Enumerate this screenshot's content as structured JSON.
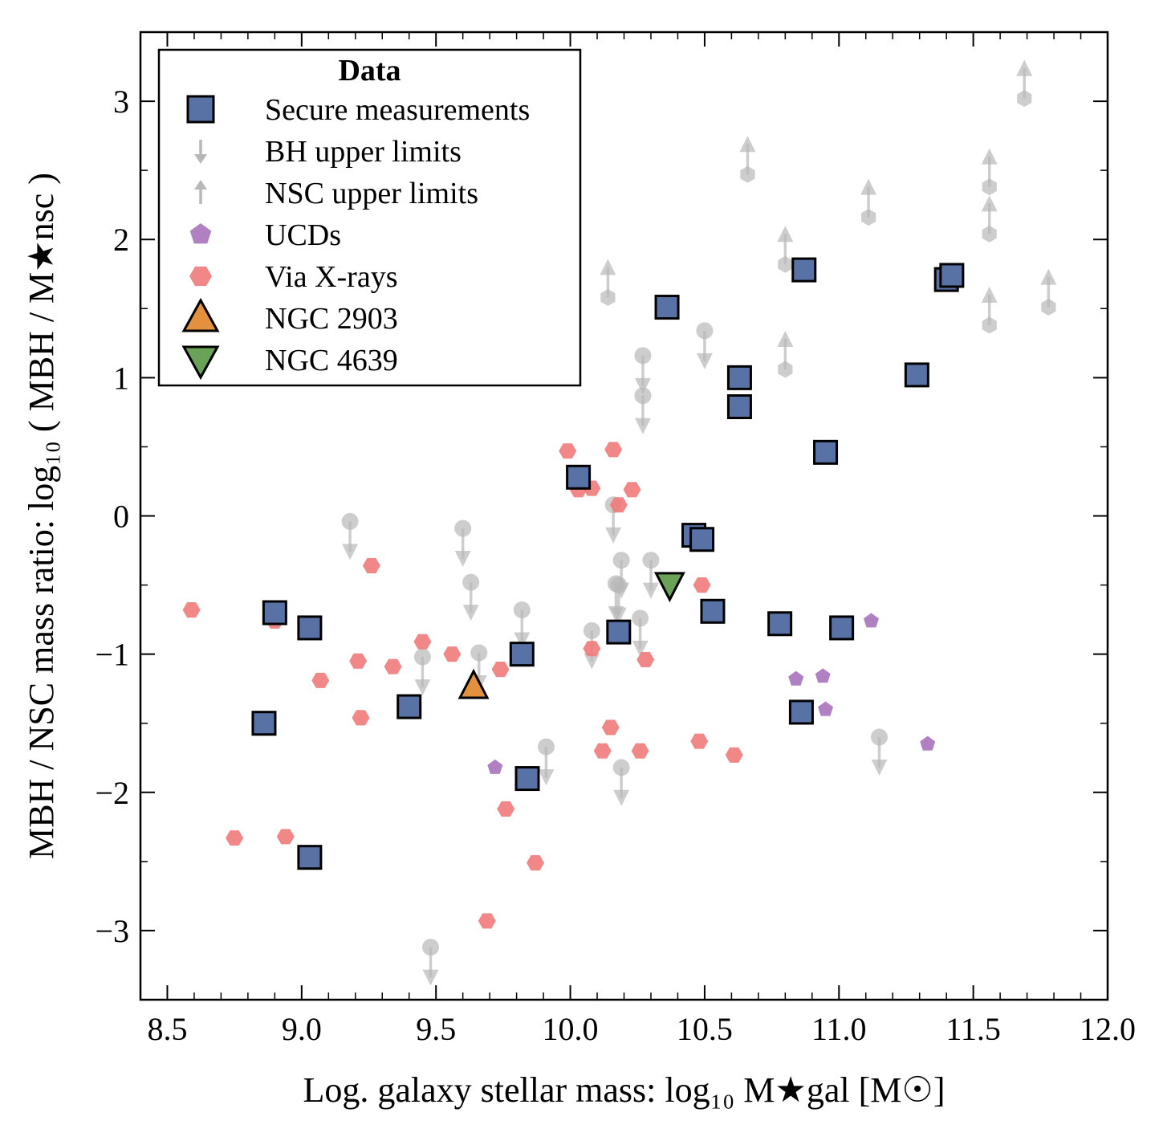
{
  "colors": {
    "secure": "#5872a6",
    "bh_limit": "#b8b8b8",
    "nsc_limit": "#b8b8b8",
    "ucd": "#a872bd",
    "xray": "#f07a7a",
    "ngc2903": "#e3913f",
    "ngc4639": "#6aa257"
  },
  "chart_data": {
    "type": "scatter",
    "xlabel": "Log. galaxy stellar mass: log₁₀ M★gal [M☉]",
    "ylabel": "MBH / NSC mass ratio: log₁₀ ( MBH / M★nsc )",
    "xlim": [
      8.4,
      12.0
    ],
    "ylim": [
      -3.5,
      3.5
    ],
    "xticks": [
      "8.5",
      "9.0",
      "9.5",
      "10.0",
      "10.5",
      "11.0",
      "11.5",
      "12.0"
    ],
    "xtick_values": [
      8.5,
      9.0,
      9.5,
      10.0,
      10.5,
      11.0,
      11.5,
      12.0
    ],
    "yticks": [
      "−3",
      "−2",
      "−1",
      "0",
      "1",
      "2",
      "3"
    ],
    "ytick_values": [
      -3,
      -2,
      -1,
      0,
      1,
      2,
      3
    ],
    "grid": false,
    "legend": {
      "title": "Data",
      "position": "top-left",
      "entries": [
        {
          "key": "secure",
          "label": "Secure measurements"
        },
        {
          "key": "bh_limit",
          "label": "BH upper limits"
        },
        {
          "key": "nsc_limit",
          "label": "NSC upper limits"
        },
        {
          "key": "ucd",
          "label": "UCDs"
        },
        {
          "key": "xray",
          "label": "Via X-rays"
        },
        {
          "key": "ngc2903",
          "label": "NGC 2903"
        },
        {
          "key": "ngc4639",
          "label": "NGC 4639"
        }
      ]
    },
    "series": [
      {
        "name": "Secure measurements",
        "key": "secure",
        "marker": "square",
        "x": [
          8.9,
          9.03,
          8.86,
          9.4,
          9.03,
          9.82,
          9.84,
          10.03,
          10.18,
          10.36,
          10.46,
          10.49,
          10.53,
          10.63,
          10.63,
          10.78,
          10.86,
          10.87,
          10.95,
          11.01,
          11.29,
          11.4,
          11.42
        ],
        "y": [
          -0.7,
          -0.81,
          -1.5,
          -1.38,
          -2.47,
          -1.0,
          -1.9,
          0.28,
          -0.84,
          1.51,
          -0.14,
          -0.17,
          -0.69,
          1.0,
          0.79,
          -0.78,
          -1.42,
          1.78,
          0.46,
          -0.81,
          1.02,
          1.71,
          1.74
        ]
      },
      {
        "name": "BH upper limits",
        "key": "bh_limit",
        "marker": "circle-down-arrow",
        "x": [
          9.18,
          9.45,
          9.48,
          9.6,
          9.63,
          9.66,
          9.82,
          9.91,
          10.08,
          10.16,
          10.17,
          10.18,
          10.19,
          10.19,
          10.27,
          10.27,
          10.26,
          10.3,
          10.5,
          11.15
        ],
        "y": [
          -0.04,
          -1.02,
          -3.12,
          -0.09,
          -0.48,
          -0.99,
          -0.68,
          -1.67,
          -0.83,
          0.08,
          -0.49,
          -0.5,
          -0.32,
          -1.82,
          1.16,
          0.87,
          -0.74,
          -0.32,
          1.34,
          -1.6
        ]
      },
      {
        "name": "NSC upper limits",
        "key": "nsc_limit",
        "marker": "hexagon-up-arrow",
        "x": [
          10.14,
          10.66,
          10.8,
          10.8,
          11.11,
          11.56,
          11.56,
          11.56,
          11.69,
          11.78
        ],
        "y": [
          1.58,
          2.47,
          1.82,
          1.06,
          2.16,
          2.38,
          2.04,
          1.38,
          3.02,
          1.51
        ]
      },
      {
        "name": "UCDs",
        "key": "ucd",
        "marker": "pentagon",
        "x": [
          9.72,
          10.84,
          10.94,
          10.95,
          11.12,
          11.33
        ],
        "y": [
          -1.82,
          -1.18,
          -1.16,
          -1.4,
          -0.76,
          -1.65
        ]
      },
      {
        "name": "Via X-rays",
        "key": "xray",
        "marker": "hexagon",
        "x": [
          8.59,
          8.75,
          8.9,
          8.94,
          9.07,
          9.21,
          9.22,
          9.26,
          9.34,
          9.45,
          9.56,
          9.69,
          9.74,
          9.76,
          9.81,
          9.87,
          9.99,
          10.03,
          10.08,
          10.08,
          10.12,
          10.15,
          10.16,
          10.18,
          10.23,
          10.26,
          10.28,
          10.48,
          10.49,
          10.61
        ],
        "y": [
          -0.68,
          -2.33,
          -0.76,
          -2.32,
          -1.19,
          -1.05,
          -1.46,
          -0.36,
          -1.09,
          -0.91,
          -1.0,
          -2.93,
          -1.11,
          -2.12,
          -1.03,
          -2.51,
          0.47,
          0.19,
          0.2,
          -0.96,
          -1.7,
          -1.53,
          0.48,
          0.08,
          0.19,
          -1.7,
          -1.04,
          -1.63,
          -0.5,
          -1.73
        ]
      },
      {
        "name": "NGC 2903",
        "key": "ngc2903",
        "marker": "triangle-up",
        "x": [
          9.64
        ],
        "y": [
          -1.24
        ]
      },
      {
        "name": "NGC 4639",
        "key": "ngc4639",
        "marker": "triangle-down",
        "x": [
          10.37
        ],
        "y": [
          -0.49
        ]
      }
    ]
  }
}
